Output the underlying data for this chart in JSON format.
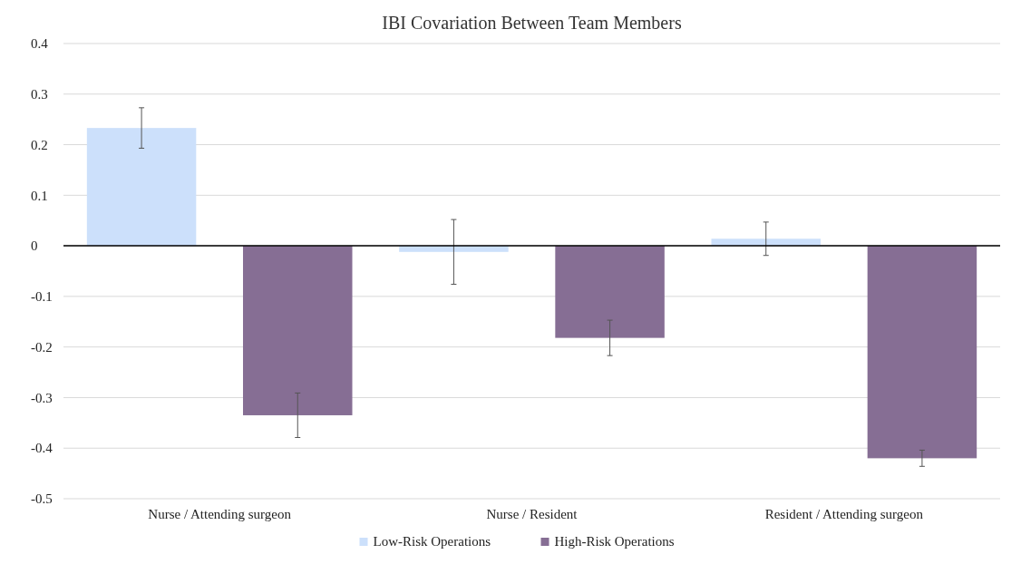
{
  "chart_data": {
    "type": "bar",
    "title": "IBI Covariation Between Team Members",
    "categories": [
      "Nurse / Attending surgeon",
      "Nurse / Resident",
      "Resident / Attending surgeon"
    ],
    "series": [
      {
        "name": "Low-Risk Operations",
        "color": "#cce0fb",
        "values": [
          0.233,
          -0.012,
          0.014
        ],
        "errors": [
          0.04,
          0.064,
          0.033
        ]
      },
      {
        "name": "High-Risk Operations",
        "color": "#866e94",
        "values": [
          -0.335,
          -0.182,
          -0.42
        ],
        "errors": [
          0.044,
          0.035,
          0.016
        ]
      }
    ],
    "ylim": [
      -0.5,
      0.4
    ],
    "yticks": [
      {
        "value": -0.5,
        "label": "-0.5"
      },
      {
        "value": -0.4,
        "label": "-0.4"
      },
      {
        "value": -0.3,
        "label": "-0.3"
      },
      {
        "value": -0.2,
        "label": "-0.2"
      },
      {
        "value": -0.1,
        "label": "-0.1"
      },
      {
        "value": 0,
        "label": "0"
      },
      {
        "value": 0.1,
        "label": "0.1"
      },
      {
        "value": 0.2,
        "label": "0.2"
      },
      {
        "value": 0.3,
        "label": "0.3"
      },
      {
        "value": 0.4,
        "label": "0.4"
      }
    ],
    "grid": "y",
    "legend": "bottom"
  }
}
